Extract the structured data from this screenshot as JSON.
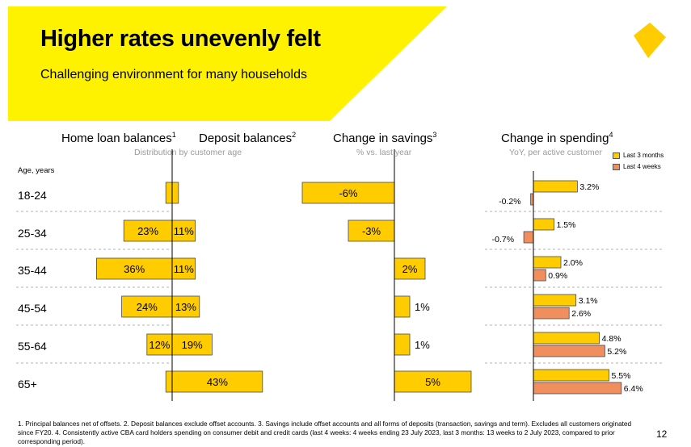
{
  "header": {
    "title": "Higher rates unevenly felt",
    "subtitle": "Challenging environment for many households"
  },
  "colors": {
    "banner": "#fff200",
    "yellow_bar": "#ffcc00",
    "orange_bar": "#f08e5d",
    "bar_outline": "#4a4a4a",
    "logo": "#ffcc00"
  },
  "columns": {
    "home_loan": {
      "label": "Home loan balances",
      "sup": "1",
      "sub": "Distribution by customer age"
    },
    "deposit": {
      "label": "Deposit balances",
      "sup": "2"
    },
    "savings": {
      "label": "Change in savings",
      "sup": "3",
      "sub": "% vs. last year"
    },
    "spending": {
      "label": "Change in spending",
      "sup": "4",
      "sub": "YoY, per active customer"
    }
  },
  "age_header": "Age, years",
  "legend": {
    "last3": "Last 3 months",
    "last4": "Last 4 weeks"
  },
  "chart_data": [
    {
      "type": "bar",
      "title": "Home loan balances",
      "subtitle": "Distribution by customer age",
      "categories": [
        "18-24",
        "25-34",
        "35-44",
        "45-54",
        "55-64",
        "65+"
      ],
      "values": [
        3,
        23,
        36,
        24,
        12,
        3
      ],
      "labels": [
        "",
        "23%",
        "36%",
        "24%",
        "12%",
        ""
      ],
      "unit": "%"
    },
    {
      "type": "bar",
      "title": "Deposit balances",
      "categories": [
        "18-24",
        "25-34",
        "35-44",
        "45-54",
        "55-64",
        "65+"
      ],
      "values": [
        3,
        11,
        11,
        13,
        19,
        43
      ],
      "labels": [
        "",
        "11%",
        "11%",
        "13%",
        "19%",
        "43%"
      ],
      "unit": "%"
    },
    {
      "type": "bar",
      "title": "Change in savings",
      "subtitle": "% vs. last year",
      "categories": [
        "18-24",
        "25-34",
        "35-44",
        "45-54",
        "55-64",
        "65+"
      ],
      "values": [
        -6,
        -3,
        2,
        1,
        1,
        5
      ],
      "labels": [
        "-6%",
        "-3%",
        "2%",
        "1%",
        "1%",
        "5%"
      ],
      "unit": "%"
    },
    {
      "type": "bar",
      "title": "Change in spending",
      "subtitle": "YoY, per active customer",
      "categories": [
        "18-24",
        "25-34",
        "35-44",
        "45-54",
        "55-64",
        "65+"
      ],
      "series": [
        {
          "name": "Last 3 months",
          "values": [
            3.2,
            1.5,
            2.0,
            3.1,
            4.8,
            5.5
          ],
          "labels": [
            "3.2%",
            "1.5%",
            "2.0%",
            "3.1%",
            "4.8%",
            "5.5%"
          ]
        },
        {
          "name": "Last 4 weeks",
          "values": [
            -0.2,
            -0.7,
            0.9,
            2.6,
            5.2,
            6.4
          ],
          "labels": [
            "-0.2%",
            "-0.7%",
            "0.9%",
            "2.6%",
            "5.2%",
            "6.4%"
          ]
        }
      ],
      "legend": "top-right",
      "unit": "%"
    }
  ],
  "footnote": "1. Principal balances net of offsets. 2. Deposit balances exclude offset accounts. 3. Savings include offset accounts and all forms of deposits (transaction, savings and term). Excludes all customers originated since FY20. 4. Consistently active CBA card holders spending on consumer debit and credit cards (last 4 weeks: 4 weeks ending 23 July 2023, last 3 months: 13 weeks to 2 July 2023, compared to prior corresponding period).",
  "page_number": "12"
}
